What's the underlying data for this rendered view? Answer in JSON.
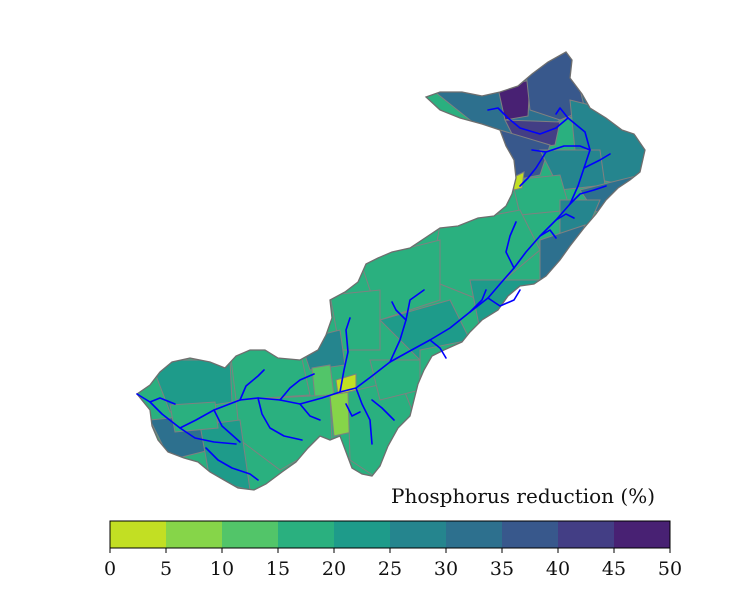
{
  "legend": {
    "title": "Phosphorus reduction (%)",
    "ticks": [
      "0",
      "5",
      "10",
      "15",
      "20",
      "25",
      "30",
      "35",
      "40",
      "45",
      "50"
    ],
    "bins": [
      {
        "range": "0-5",
        "color": "#c2df23"
      },
      {
        "range": "5-10",
        "color": "#86d549"
      },
      {
        "range": "10-15",
        "color": "#52c569"
      },
      {
        "range": "15-20",
        "color": "#2ab07f"
      },
      {
        "range": "20-25",
        "color": "#1e9b8a"
      },
      {
        "range": "25-30",
        "color": "#25858e"
      },
      {
        "range": "30-35",
        "color": "#2d708e"
      },
      {
        "range": "35-40",
        "color": "#38588c"
      },
      {
        "range": "40-45",
        "color": "#433e85"
      },
      {
        "range": "45-50",
        "color": "#482173"
      }
    ]
  },
  "map": {
    "background_color": "#2ab07f",
    "subbasin_outline_color": "#808080",
    "river_color": "#0000ff"
  }
}
